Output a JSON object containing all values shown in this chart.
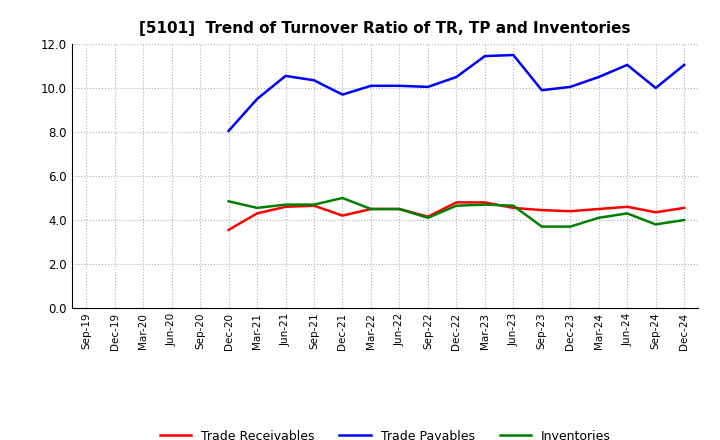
{
  "title": "[5101]  Trend of Turnover Ratio of TR, TP and Inventories",
  "x_labels": [
    "Sep-19",
    "Dec-19",
    "Mar-20",
    "Jun-20",
    "Sep-20",
    "Dec-20",
    "Mar-21",
    "Jun-21",
    "Sep-21",
    "Dec-21",
    "Mar-22",
    "Jun-22",
    "Sep-22",
    "Dec-22",
    "Mar-23",
    "Jun-23",
    "Sep-23",
    "Dec-23",
    "Mar-24",
    "Jun-24",
    "Sep-24",
    "Dec-24"
  ],
  "trade_receivables": [
    null,
    null,
    null,
    null,
    null,
    3.55,
    4.3,
    4.6,
    4.65,
    4.2,
    4.5,
    4.5,
    4.15,
    4.8,
    4.8,
    4.55,
    4.45,
    4.4,
    4.5,
    4.6,
    4.35,
    4.55
  ],
  "trade_payables": [
    null,
    null,
    null,
    null,
    null,
    8.05,
    9.5,
    10.55,
    10.35,
    9.7,
    10.1,
    10.1,
    10.05,
    10.5,
    11.45,
    11.5,
    9.9,
    10.05,
    10.5,
    11.05,
    10.0,
    11.05
  ],
  "inventories": [
    null,
    null,
    null,
    null,
    null,
    4.85,
    4.55,
    4.7,
    4.7,
    5.0,
    4.5,
    4.5,
    4.1,
    4.65,
    4.7,
    4.65,
    3.7,
    3.7,
    4.1,
    4.3,
    3.8,
    4.0
  ],
  "tr_color": "#ff0000",
  "tp_color": "#0000ff",
  "inv_color": "#008000",
  "ylim": [
    0.0,
    12.0
  ],
  "yticks": [
    0.0,
    2.0,
    4.0,
    6.0,
    8.0,
    10.0,
    12.0
  ],
  "background_color": "#ffffff",
  "grid_color": "#b0b0b0",
  "legend_labels": [
    "Trade Receivables",
    "Trade Payables",
    "Inventories"
  ]
}
